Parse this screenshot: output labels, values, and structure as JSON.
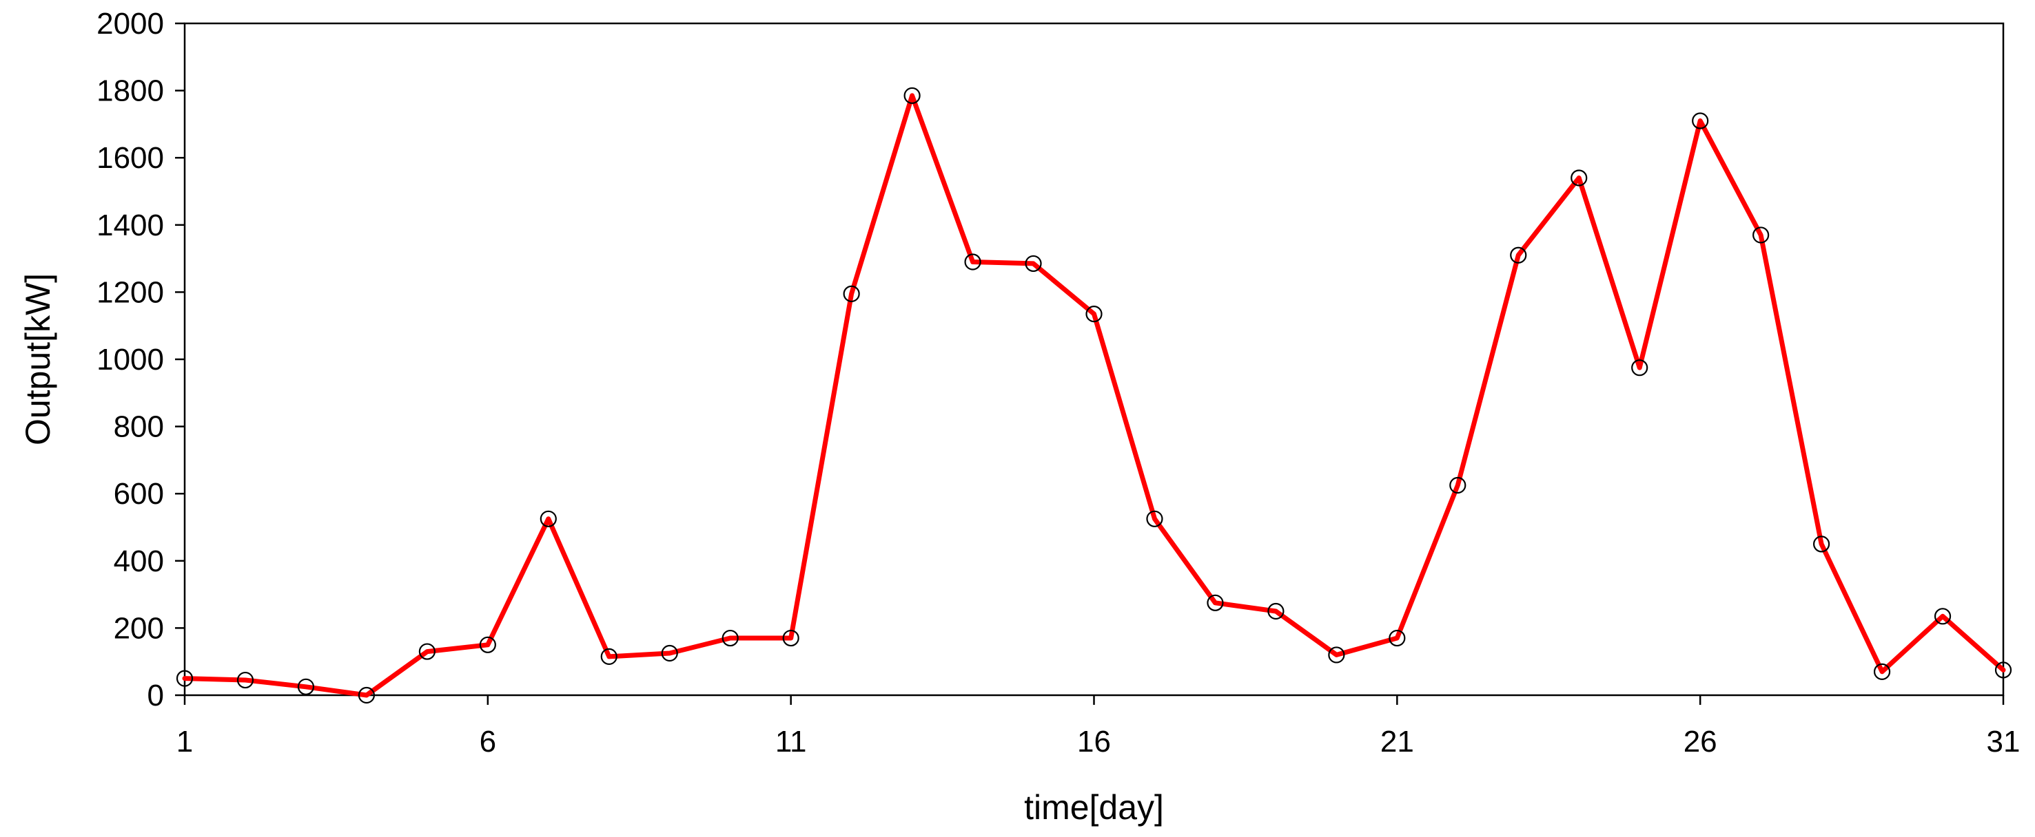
{
  "chart_data": {
    "type": "line",
    "title": "",
    "xlabel": "time[day]",
    "ylabel": "Output[kW]",
    "xlim": [
      1,
      31
    ],
    "ylim": [
      0,
      2000
    ],
    "x_ticks": [
      1,
      6,
      11,
      16,
      21,
      26,
      31
    ],
    "y_ticks": [
      0,
      200,
      400,
      600,
      800,
      1000,
      1200,
      1400,
      1600,
      1800,
      2000
    ],
    "grid": false,
    "legend": "none",
    "colors": {
      "line": "#ff0000",
      "marker": "#000000",
      "frame": "#000000"
    },
    "marker": "open-circle",
    "series": [
      {
        "x": [
          1,
          2,
          3,
          4,
          5,
          6,
          7,
          8,
          9,
          10,
          11,
          12,
          13,
          14,
          15,
          16,
          17,
          18,
          19,
          20,
          21,
          22,
          23,
          24,
          25,
          26,
          27,
          28,
          29,
          30,
          31
        ],
        "values": [
          50,
          45,
          25,
          0,
          130,
          150,
          525,
          115,
          125,
          170,
          170,
          1195,
          1785,
          1290,
          1285,
          1135,
          525,
          275,
          250,
          120,
          170,
          625,
          1310,
          1540,
          975,
          1710,
          1370,
          450,
          70,
          235,
          75
        ]
      }
    ]
  }
}
